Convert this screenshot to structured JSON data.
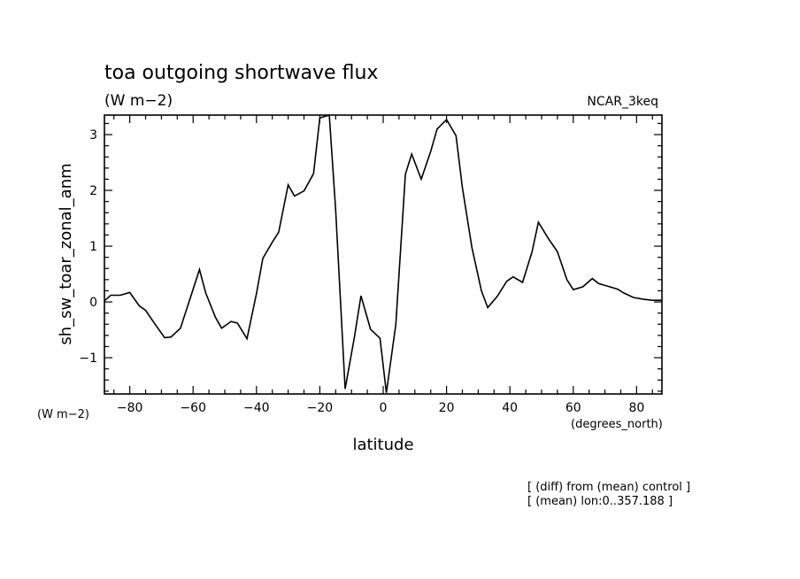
{
  "chart_data": {
    "type": "line",
    "title": "toa outgoing shortwave flux",
    "subtitle": "(W m−2)",
    "model_label": "NCAR_3keq",
    "ylabel": "sh_sw_toar_zonal_anm",
    "ylabel_units": "(W m−2)",
    "xlabel": "latitude",
    "xlabel_units": "(degrees_north)",
    "xlim": [
      -88,
      88
    ],
    "ylim": [
      -1.65,
      3.35
    ],
    "x_ticks": [
      -80,
      -60,
      -40,
      -20,
      0,
      20,
      40,
      60,
      80
    ],
    "x_tick_labels": [
      "−80",
      "−60",
      "−40",
      "−20",
      "0",
      "20",
      "40",
      "60",
      "80"
    ],
    "y_ticks": [
      -1,
      0,
      1,
      2,
      3
    ],
    "y_tick_labels": [
      "−1",
      "0",
      "1",
      "2",
      "3"
    ],
    "grid": false,
    "series": [
      {
        "color": "#000000",
        "x": [
          -88,
          -86,
          -83,
          -80,
          -77,
          -75,
          -72,
          -69,
          -67,
          -64,
          -61,
          -58,
          -56,
          -53,
          -51,
          -48,
          -46,
          -43,
          -40,
          -38,
          -35,
          -33,
          -30,
          -28,
          -25,
          -22,
          -20,
          -17,
          -15,
          -12,
          -9,
          -7,
          -4,
          -1,
          1,
          4,
          7,
          9,
          12,
          15,
          17,
          20,
          23,
          25,
          28,
          31,
          33,
          36,
          39,
          41,
          44,
          47,
          49,
          52,
          55,
          58,
          60,
          63,
          66,
          68,
          71,
          74,
          76,
          79,
          82,
          85,
          88
        ],
        "y": [
          0.02,
          0.12,
          0.12,
          0.17,
          -0.07,
          -0.15,
          -0.4,
          -0.64,
          -0.63,
          -0.47,
          0.05,
          0.58,
          0.16,
          -0.27,
          -0.47,
          -0.35,
          -0.38,
          -0.66,
          0.15,
          0.78,
          1.07,
          1.25,
          2.1,
          1.9,
          1.99,
          2.3,
          3.3,
          3.35,
          1.65,
          -1.56,
          -0.6,
          0.11,
          -0.49,
          -0.65,
          -1.63,
          -0.4,
          2.29,
          2.65,
          2.2,
          2.7,
          3.1,
          3.27,
          2.98,
          2.05,
          0.98,
          0.2,
          -0.1,
          0.1,
          0.37,
          0.45,
          0.35,
          0.9,
          1.43,
          1.15,
          0.9,
          0.4,
          0.22,
          0.27,
          0.42,
          0.33,
          0.28,
          0.23,
          0.16,
          0.08,
          0.05,
          0.03,
          0.03
        ]
      }
    ]
  },
  "notes": {
    "line1": "[ (diff) from (mean) control ]",
    "line2": "[ (mean) lon:0..357.188 ]"
  }
}
